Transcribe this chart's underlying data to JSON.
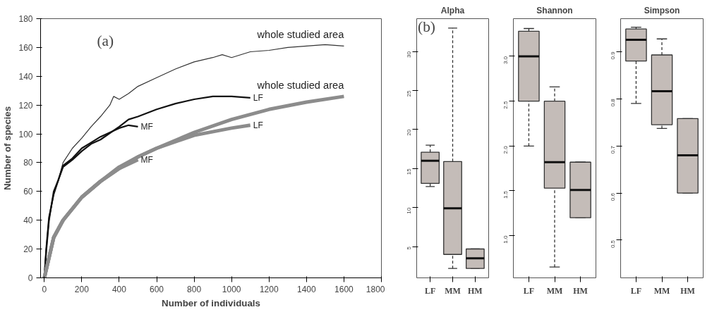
{
  "chart_data": [
    {
      "type": "line",
      "xlabel": "Number of individuals",
      "ylabel": "Number of species",
      "xlim": [
        -20,
        1800
      ],
      "ylim": [
        0,
        180
      ],
      "xticks": [
        0,
        200,
        400,
        600,
        800,
        1000,
        1200,
        1400,
        1600,
        1800
      ],
      "yticks": [
        0,
        20,
        40,
        60,
        80,
        100,
        120,
        140,
        160,
        180
      ],
      "grid": false,
      "marker": "none",
      "annotations": [
        "(a)"
      ],
      "series": [
        {
          "name": "whole studied area",
          "color": "#333333",
          "x": [
            0,
            10,
            25,
            50,
            75,
            100,
            150,
            200,
            250,
            300,
            350,
            370,
            400,
            450,
            500,
            600,
            700,
            800,
            900,
            950,
            1000,
            1100,
            1200,
            1300,
            1400,
            1500,
            1600
          ],
          "values": [
            0,
            20,
            40,
            58,
            68,
            80,
            90,
            97,
            105,
            112,
            120,
            126,
            124,
            128,
            133,
            139,
            145,
            150,
            153,
            155,
            153,
            157,
            158,
            160,
            161,
            162,
            161
          ]
        },
        {
          "name": "LF",
          "color": "#111111",
          "x": [
            0,
            10,
            25,
            50,
            75,
            100,
            150,
            200,
            250,
            300,
            400,
            450,
            500,
            600,
            700,
            800,
            900,
            1000,
            1100
          ],
          "values": [
            0,
            18,
            40,
            60,
            68,
            77,
            82,
            88,
            93,
            96,
            105,
            110,
            112,
            117,
            121,
            124,
            126,
            126,
            125
          ]
        },
        {
          "name": "MF",
          "color": "#111111",
          "x": [
            0,
            10,
            25,
            50,
            100,
            150,
            200,
            250,
            300,
            400,
            450,
            500
          ],
          "values": [
            0,
            20,
            42,
            58,
            78,
            83,
            90,
            94,
            98,
            104,
            106,
            105
          ]
        },
        {
          "name": "whole studied area",
          "color": "#8c8c8c",
          "x": [
            0,
            50,
            100,
            200,
            300,
            400,
            500,
            600,
            800,
            1000,
            1200,
            1400,
            1600
          ],
          "values": [
            0,
            28,
            40,
            56,
            67,
            76,
            84,
            90,
            101,
            110,
            117,
            122,
            126
          ]
        },
        {
          "name": "LF",
          "color": "#8c8c8c",
          "x": [
            0,
            50,
            100,
            200,
            300,
            400,
            500,
            600,
            800,
            1000,
            1100
          ],
          "values": [
            0,
            28,
            40,
            56,
            67,
            77,
            84,
            90,
            99,
            104,
            106
          ]
        },
        {
          "name": "MF",
          "color": "#8c8c8c",
          "x": [
            0,
            50,
            100,
            200,
            300,
            400,
            500
          ],
          "values": [
            0,
            28,
            40,
            56,
            67,
            76,
            82
          ]
        }
      ]
    },
    {
      "type": "box",
      "title": "Alpha",
      "categories": [
        "LF",
        "MM",
        "HM"
      ],
      "ylim": [
        1.0,
        34.2
      ],
      "yticks": [
        5,
        10,
        15,
        20,
        25,
        30
      ],
      "grid": false,
      "line_style": "dashed",
      "color": "#c4bcb8",
      "annotations": [
        "(b)"
      ],
      "boxes": [
        {
          "low": 12.7,
          "q1": 13.1,
          "median": 16.0,
          "q3": 17.1,
          "high": 18.0
        },
        {
          "low": 2.2,
          "q1": 4.0,
          "median": 9.9,
          "q3": 15.9,
          "high": 33.0
        },
        {
          "low": 2.2,
          "q1": 2.2,
          "median": 3.5,
          "q3": 4.7,
          "high": 4.7
        }
      ]
    },
    {
      "type": "box",
      "title": "Shannon",
      "categories": [
        "LF",
        "MM",
        "HM"
      ],
      "ylim": [
        0.53,
        3.42
      ],
      "yticks": [
        {
          "value": 1,
          "label": "1.0"
        },
        1.5,
        {
          "value": 2,
          "label": "2.0"
        },
        2.5,
        {
          "value": 3,
          "label": "3.0"
        }
      ],
      "grid": false,
      "line_style": "dashed",
      "color": "#c4bcb8",
      "boxes": [
        {
          "low": 2.0,
          "q1": 2.5,
          "median": 3.0,
          "q3": 3.28,
          "high": 3.31
        },
        {
          "low": 0.65,
          "q1": 1.53,
          "median": 1.82,
          "q3": 2.5,
          "high": 2.66
        },
        {
          "low": 1.2,
          "q1": 1.2,
          "median": 1.51,
          "q3": 1.82,
          "high": 1.82
        }
      ]
    },
    {
      "type": "box",
      "title": "Simpson",
      "categories": [
        "LF",
        "MM",
        "HM"
      ],
      "ylim": [
        0.42,
        0.97
      ],
      "yticks": [
        0.5,
        0.6,
        0.7,
        0.8,
        0.9
      ],
      "grid": false,
      "line_style": "dashed",
      "color": "#c4bcb8",
      "boxes": [
        {
          "low": 0.79,
          "q1": 0.88,
          "median": 0.925,
          "q3": 0.948,
          "high": 0.952
        },
        {
          "low": 0.737,
          "q1": 0.745,
          "median": 0.816,
          "q3": 0.893,
          "high": 0.927
        },
        {
          "low": 0.6,
          "q1": 0.6,
          "median": 0.68,
          "q3": 0.758,
          "high": 0.758
        }
      ]
    }
  ]
}
